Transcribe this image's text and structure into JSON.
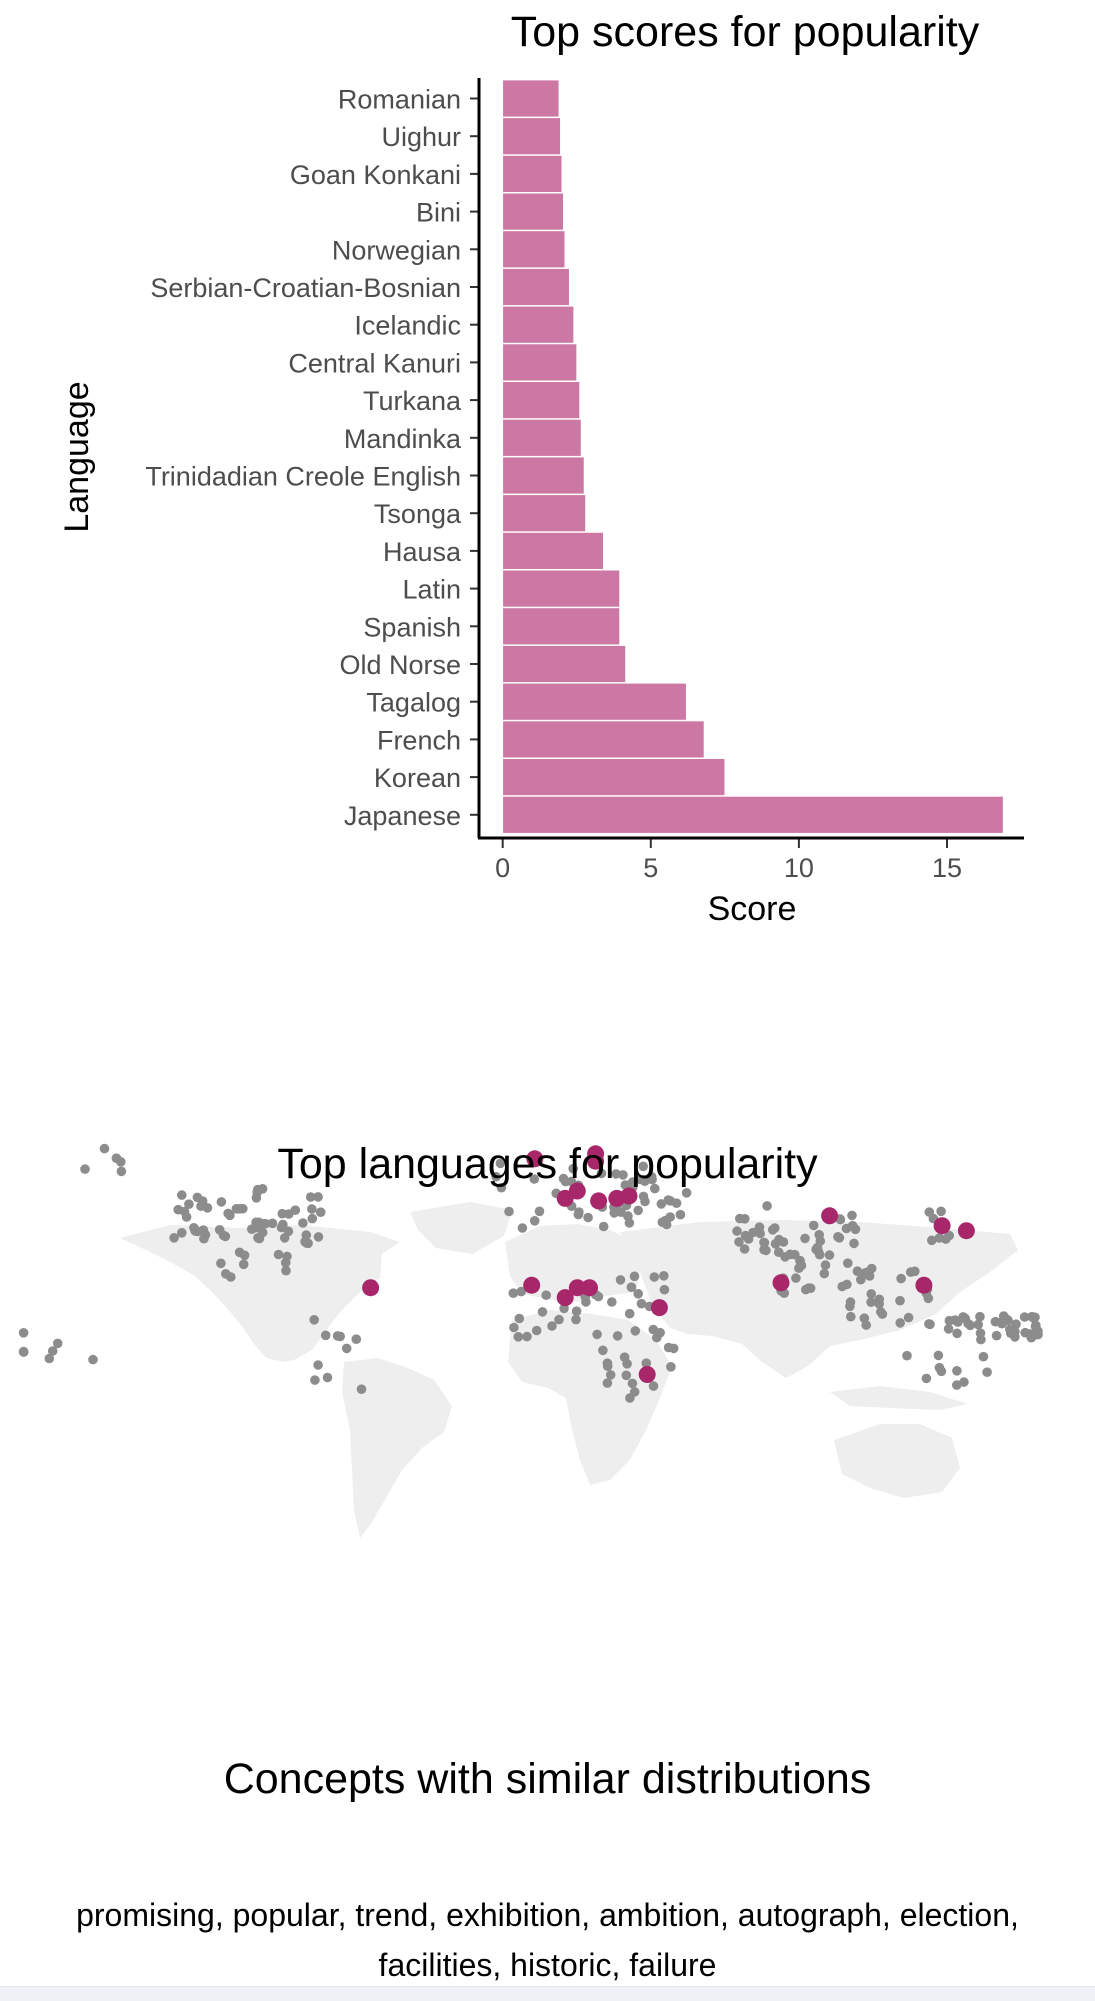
{
  "chart_data": {
    "type": "bar",
    "orientation": "horizontal",
    "title": "Top scores for popularity",
    "xlabel": "Score",
    "ylabel": "Language",
    "categories": [
      "Romanian",
      "Uighur",
      "Goan Konkani",
      "Bini",
      "Norwegian",
      "Serbian-Croatian-Bosnian",
      "Icelandic",
      "Central Kanuri",
      "Turkana",
      "Mandinka",
      "Trinidadian Creole English",
      "Tsonga",
      "Hausa",
      "Latin",
      "Spanish",
      "Old Norse",
      "Tagalog",
      "French",
      "Korean",
      "Japanese"
    ],
    "values": [
      1.9,
      1.95,
      2.0,
      2.05,
      2.1,
      2.25,
      2.4,
      2.5,
      2.6,
      2.65,
      2.75,
      2.8,
      3.4,
      3.95,
      3.95,
      4.15,
      6.2,
      6.8,
      7.5,
      16.9
    ],
    "xticks": [
      0,
      5,
      10,
      15
    ],
    "xlim": [
      -0.8,
      17.6
    ],
    "bar_color": "#cc77a4",
    "grid": false
  },
  "map": {
    "title": "Top languages for popularity",
    "land_color": "#eeeeee",
    "background_point_color": "#8c8c8c",
    "highlight_color": "#a8266a",
    "highlighted_points": [
      {
        "lon": -6,
        "lat": 63
      },
      {
        "lon": 14,
        "lat": 65
      },
      {
        "lon": 14,
        "lat": 62
      },
      {
        "lon": 8,
        "lat": 50
      },
      {
        "lon": 4,
        "lat": 47
      },
      {
        "lon": 15,
        "lat": 46
      },
      {
        "lon": 21,
        "lat": 47
      },
      {
        "lon": 25,
        "lat": 48
      },
      {
        "lon": -60,
        "lat": 11
      },
      {
        "lon": -7,
        "lat": 12
      },
      {
        "lon": 8,
        "lat": 11
      },
      {
        "lon": 12,
        "lat": 11
      },
      {
        "lon": 4,
        "lat": 7
      },
      {
        "lon": 35,
        "lat": 3
      },
      {
        "lon": 31,
        "lat": -24
      },
      {
        "lon": 75,
        "lat": 13
      },
      {
        "lon": 91,
        "lat": 40
      },
      {
        "lon": 128,
        "lat": 36
      },
      {
        "lon": 136,
        "lat": 34
      },
      {
        "lon": 122,
        "lat": 12
      }
    ]
  },
  "concepts": {
    "title": "Concepts with similar distributions",
    "text": "promising, popular, trend, exhibition, ambition, autograph, election, facilities, historic, failure"
  }
}
